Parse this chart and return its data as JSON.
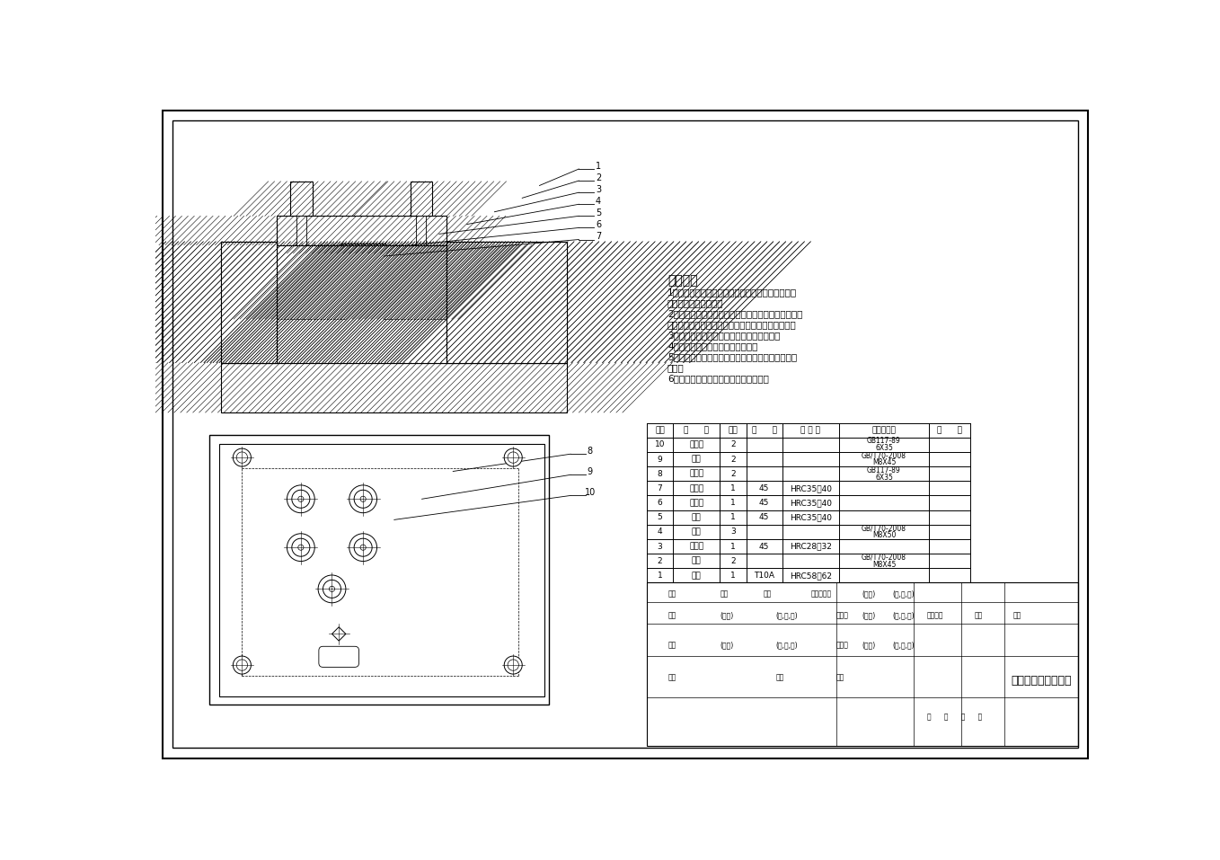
{
  "bg_color": "#ffffff",
  "border_color": "#000000",
  "line_color": "#000000",
  "title": "钻孔综平夹具装配图",
  "tech_requirements_title": "技术要求",
  "tech_requirements": [
    "1、所有零部件（包括外购、外协件）必须具有检验",
    "合格证方能进行装配。",
    "2、零件在装配前必须清理和清洗干净，不得有毛刺、",
    "飞边、氧化皮、锈蚀、切屑、砂粒、灰尘和油污等。",
    "3、装配过程中零件不得碰碰、划伤和锈蚀。",
    "4、油漆未干的零件不得进行装配。",
    "5、相对运动的零件，装配时接触面间应加润滑油（",
    "脂）。",
    "6、各零、部件装配后相对位置应准确。"
  ],
  "parts_list": [
    {
      "seq": "10",
      "name": "圆锥销",
      "qty": "2",
      "material": "",
      "hardness": "",
      "standard": "GB117-89\n6X35"
    },
    {
      "seq": "9",
      "name": "螺钉",
      "qty": "2",
      "material": "",
      "hardness": "",
      "standard": "GB/T70-2008\nM8X45"
    },
    {
      "seq": "8",
      "name": "圆锥销",
      "qty": "2",
      "material": "",
      "hardness": "",
      "standard": "GB117-89\n6X35"
    },
    {
      "seq": "7",
      "name": "夹具体",
      "qty": "1",
      "material": "45",
      "hardness": "HRC35～40",
      "standard": ""
    },
    {
      "seq": "6",
      "name": "定位块",
      "qty": "1",
      "material": "45",
      "hardness": "HRC35～40",
      "standard": ""
    },
    {
      "seq": "5",
      "name": "垫块",
      "qty": "1",
      "material": "45",
      "hardness": "HRC35～40",
      "standard": ""
    },
    {
      "seq": "4",
      "name": "螺钉",
      "qty": "3",
      "material": "",
      "hardness": "",
      "standard": "GB/T70-2008\nM8X50"
    },
    {
      "seq": "3",
      "name": "钻模板",
      "qty": "1",
      "material": "45",
      "hardness": "HRC28～32",
      "standard": ""
    },
    {
      "seq": "2",
      "name": "螺钉",
      "qty": "2",
      "material": "",
      "hardness": "",
      "standard": "GB/T70-2008\nM8X45"
    },
    {
      "seq": "1",
      "name": "钻套",
      "qty": "1",
      "material": "T10A",
      "hardness": "HRC58～62",
      "standard": ""
    }
  ],
  "header_row": {
    "seq": "序号",
    "name": "名      称",
    "qty": "数量",
    "material": "材      料",
    "hardness": "热 处 理",
    "standard": "标准件代号",
    "note": "备      注"
  },
  "top_view_leaders": [
    [
      1,
      612,
      862,
      555,
      838
    ],
    [
      2,
      612,
      845,
      530,
      820
    ],
    [
      3,
      612,
      828,
      490,
      800
    ],
    [
      4,
      612,
      811,
      450,
      782
    ],
    [
      5,
      612,
      794,
      410,
      768
    ],
    [
      6,
      612,
      777,
      370,
      752
    ],
    [
      7,
      612,
      760,
      330,
      736
    ]
  ],
  "bottom_view_leaders": [
    [
      8,
      600,
      450,
      430,
      425
    ],
    [
      9,
      600,
      420,
      385,
      385
    ],
    [
      10,
      600,
      390,
      345,
      355
    ]
  ]
}
